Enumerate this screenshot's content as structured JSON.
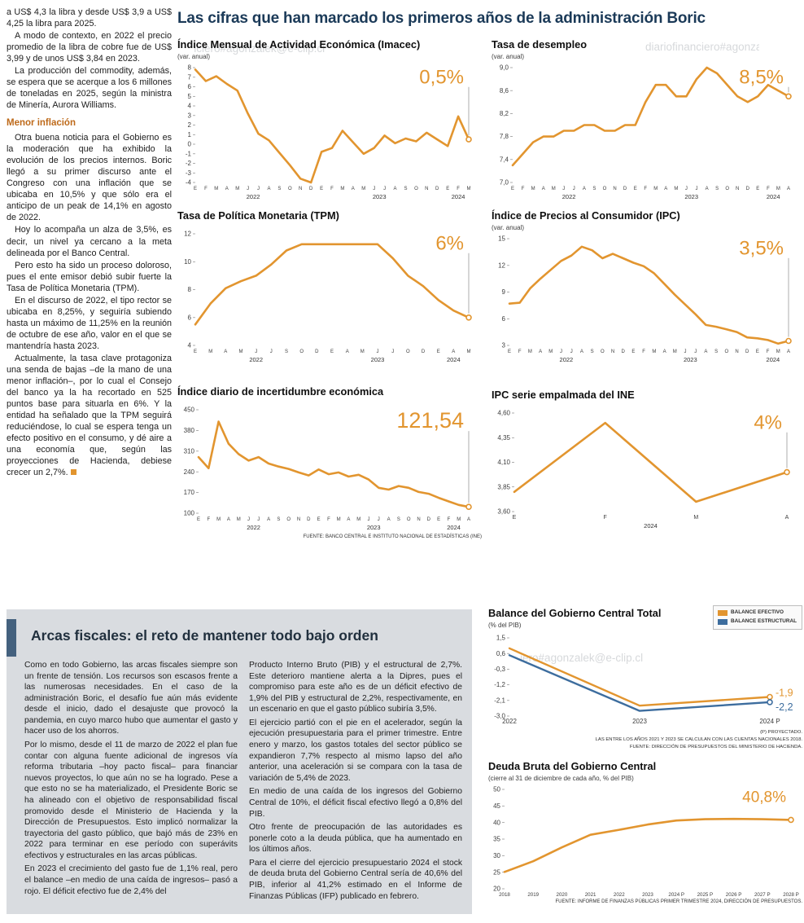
{
  "watermark": "diariofinanciero#agonzalek@e-clip.cl",
  "article": {
    "intro": [
      "a US$ 4,3 la libra y desde US$ 3,9 a US$ 4,25 la libra para 2025.",
      "A modo de contexto, en 2022 el precio promedio de la libra de cobre fue de US$ 3,99 y de unos US$ 3,84 en 2023.",
      "La producción del commodity, además, se espera que se acerque a los 6 millones de toneladas en 2025, según la ministra de Minería, Aurora Williams."
    ],
    "subhead": "Menor inflación",
    "body": [
      "Otra buena noticia para el Gobierno es la moderación que ha exhibido la evolución de los precios internos. Boric llegó a su primer discurso ante el Congreso con una inflación que se ubicaba en 10,5% y que sólo era el anticipo de un peak de 14,1% en agosto de 2022.",
      "Hoy lo acompaña un alza de 3,5%, es decir, un nivel ya cercano a la meta delineada por el Banco Central.",
      "Pero esto ha sido un proceso doloroso, pues el ente emisor debió subir fuerte la Tasa de Política Monetaria (TPM).",
      "En el discurso de 2022, el tipo rector se ubicaba en 8,25%, y seguiría subiendo hasta un máximo de 11,25% en la reunión de octubre de ese año, valor en el que se mantendría hasta 2023.",
      "Actualmente, la tasa clave protagoniza una senda de bajas –de la mano de una menor inflación–, por lo cual el Consejo del banco ya la ha recortado en 525 puntos base para situarla en 6%. Y la entidad ha señalado que la TPM seguirá reduciéndose, lo cual se espera tenga un efecto positivo en el consumo, y dé aire a una economía que, según las proyecciones de Hacienda, debiese crecer un 2,7%."
    ]
  },
  "main": {
    "title": "Las cifras que han marcado los primeros años de la administración Boric"
  },
  "fiscal": {
    "title": "Arcas fiscales: el reto de mantener todo bajo orden",
    "col1": [
      "Como en todo Gobierno, las arcas fiscales siempre son un frente de tensión. Los recursos son escasos frente a las numerosas necesidades. En el caso de la administración Boric, el desafío fue aún más evidente desde el inicio, dado el desajuste que provocó la pandemia, en cuyo marco hubo que aumentar el gasto y hacer uso de los ahorros.",
      "Por lo mismo, desde el 11 de marzo de 2022 el plan fue contar con alguna fuente adicional de ingresos vía reforma tributaria –hoy pacto fiscal– para financiar nuevos proyectos, lo que aún no se ha logrado. Pese a que esto no se ha materializado, el Presidente Boric se ha alineado con el objetivo de responsabilidad fiscal promovido desde el Ministerio de Hacienda y la Dirección de Presupuestos. Esto implicó normalizar la trayectoria del gasto público, que bajó más de 23% en 2022 para terminar en ese período con superávits efectivos y estructurales en las arcas públicas.",
      "En 2023 el crecimiento del gasto fue de 1,1% real, pero el balance –en medio de una caída de ingresos– pasó a rojo. El déficit efectivo fue de 2,4% del"
    ],
    "col2": [
      "Producto Interno Bruto (PIB) y el estructural de 2,7%. Este deterioro mantiene alerta a la Dipres, pues el compromiso para este año es de un déficit efectivo de 1,9% del PIB y estructural de 2,2%, respectivamente, en un escenario en que el gasto público subiría 3,5%.",
      "El ejercicio partió con el pie en el acelerador, según la ejecución presupuestaria para el primer trimestre. Entre enero y marzo, los gastos totales del sector público se expandieron 7,7% respecto al mismo lapso del año anterior, una aceleración si se compara con la tasa de variación de 5,4% de 2023.",
      "En medio de una caída de los ingresos del Gobierno Central de 10%, el déficit fiscal efectivo llegó a 0,8% del PIB.",
      "Otro frente de preocupación de las autoridades es ponerle coto a la deuda pública, que ha aumentado en los últimos años.",
      "Para el cierre del ejercicio presupuestario 2024 el stock de deuda bruta del Gobierno Central sería de 40,6% del PIB, inferior al 41,2% estimado en el Informe de Finanzas Públicas (IFP) publicado en febrero."
    ]
  },
  "chart_data": [
    {
      "id": "imacec",
      "type": "line",
      "title": "Índice Mensual de Actividad Económica (Imacec)",
      "subtitle": "(var. anual)",
      "color": "#E2952F",
      "callout": "0,5%",
      "callout_size": 24,
      "y_ticks": [
        "8",
        "7",
        "6",
        "5",
        "4",
        "3",
        "2",
        "1",
        "0",
        "-1",
        "-2",
        "-3",
        "-4"
      ],
      "x_labels": [
        "E",
        "F",
        "M",
        "A",
        "M",
        "J",
        "J",
        "A",
        "S",
        "O",
        "N",
        "D",
        "E",
        "F",
        "M",
        "A",
        "M",
        "J",
        "J",
        "A",
        "S",
        "O",
        "N",
        "D",
        "E",
        "F",
        "M"
      ],
      "years": [
        {
          "label": "2022",
          "from": 0,
          "to": 11
        },
        {
          "label": "2023",
          "from": 12,
          "to": 23
        },
        {
          "label": "2024",
          "from": 24,
          "to": 26
        }
      ],
      "values": [
        7.8,
        6.6,
        7.1,
        6.3,
        5.6,
        3.2,
        1.1,
        0.4,
        -0.9,
        -2.2,
        -3.6,
        -4.0,
        -0.8,
        -0.4,
        1.4,
        0.2,
        -1.0,
        -0.4,
        0.9,
        0.1,
        0.6,
        0.3,
        1.2,
        0.5,
        -0.2,
        2.9,
        0.5
      ],
      "pad": {
        "l": 22,
        "r": 16,
        "t": 6,
        "b": 14
      }
    },
    {
      "id": "desempleo",
      "type": "line",
      "title": "Tasa de desempleo",
      "subtitle": "(var. anual)",
      "color": "#E2952F",
      "callout": "8,5%",
      "callout_size": 24,
      "y_ticks": [
        "9,0",
        "8,6",
        "8,2",
        "7,8",
        "7,4",
        "7,0"
      ],
      "x_labels": [
        "E",
        "F",
        "M",
        "A",
        "M",
        "J",
        "J",
        "A",
        "S",
        "O",
        "N",
        "D",
        "E",
        "F",
        "M",
        "A",
        "M",
        "J",
        "J",
        "A",
        "S",
        "O",
        "N",
        "D",
        "E",
        "F",
        "M",
        "A"
      ],
      "years": [
        {
          "label": "2022",
          "from": 0,
          "to": 11
        },
        {
          "label": "2023",
          "from": 12,
          "to": 23
        },
        {
          "label": "2024",
          "from": 24,
          "to": 27
        }
      ],
      "values": [
        7.3,
        7.5,
        7.7,
        7.8,
        7.8,
        7.9,
        7.9,
        8.0,
        8.0,
        7.9,
        7.9,
        8.0,
        8.0,
        8.4,
        8.7,
        8.7,
        8.5,
        8.5,
        8.8,
        9.0,
        8.9,
        8.7,
        8.5,
        8.4,
        8.5,
        8.7,
        8.6,
        8.5
      ],
      "pad": {
        "l": 26,
        "r": 16,
        "t": 6,
        "b": 14
      }
    },
    {
      "id": "tpm",
      "type": "line",
      "title": "Tasa de Política Monetaria (TPM)",
      "color": "#E2952F",
      "callout": "6%",
      "callout_size": 24,
      "y_ticks": [
        "12",
        "10",
        "8",
        "6",
        "4"
      ],
      "x_labels": [
        "E",
        "M",
        "A",
        "M",
        "J",
        "J",
        "S",
        "O",
        "D",
        "E",
        "A",
        "M",
        "J",
        "J",
        "O",
        "D",
        "E",
        "A",
        "M"
      ],
      "years": [
        {
          "label": "2022",
          "from": 0,
          "to": 8
        },
        {
          "label": "2023",
          "from": 9,
          "to": 15
        },
        {
          "label": "2024",
          "from": 16,
          "to": 18
        }
      ],
      "values": [
        5.5,
        7.0,
        8.1,
        8.6,
        9.0,
        9.8,
        10.8,
        11.25,
        11.25,
        11.25,
        11.25,
        11.25,
        11.25,
        10.25,
        9.0,
        8.25,
        7.25,
        6.5,
        6.0
      ],
      "pad": {
        "l": 22,
        "r": 16,
        "t": 6,
        "b": 14
      }
    },
    {
      "id": "ipc",
      "type": "line",
      "title": "Índice de Precios al Consumidor (IPC)",
      "subtitle": "(var. anual)",
      "color": "#E2952F",
      "callout": "3,5%",
      "callout_size": 24,
      "y_ticks": [
        "15",
        "12",
        "9",
        "6",
        "3"
      ],
      "x_labels": [
        "E",
        "F",
        "M",
        "A",
        "M",
        "J",
        "J",
        "A",
        "S",
        "O",
        "N",
        "D",
        "E",
        "F",
        "M",
        "A",
        "M",
        "J",
        "J",
        "A",
        "S",
        "O",
        "N",
        "D",
        "E",
        "F",
        "M",
        "A"
      ],
      "years": [
        {
          "label": "2022",
          "from": 0,
          "to": 11
        },
        {
          "label": "2023",
          "from": 12,
          "to": 23
        },
        {
          "label": "2024",
          "from": 24,
          "to": 27
        }
      ],
      "values": [
        7.7,
        7.8,
        9.4,
        10.5,
        11.5,
        12.5,
        13.1,
        14.1,
        13.7,
        12.8,
        13.3,
        12.8,
        12.3,
        11.9,
        11.1,
        9.9,
        8.7,
        7.6,
        6.5,
        5.3,
        5.1,
        4.8,
        4.5,
        3.9,
        3.8,
        3.6,
        3.2,
        3.5
      ],
      "pad": {
        "l": 22,
        "r": 16,
        "t": 6,
        "b": 14
      }
    },
    {
      "id": "incert",
      "type": "line",
      "title": "Índice diario de incertidumbre económica",
      "color": "#E2952F",
      "callout": "121,54",
      "callout_size": 27,
      "y_ticks": [
        "450",
        "380",
        "310",
        "240",
        "170",
        "100"
      ],
      "x_labels": [
        "E",
        "F",
        "M",
        "A",
        "M",
        "J",
        "J",
        "A",
        "S",
        "O",
        "N",
        "D",
        "E",
        "F",
        "M",
        "A",
        "M",
        "J",
        "J",
        "A",
        "S",
        "O",
        "N",
        "D",
        "E",
        "F",
        "M",
        "A"
      ],
      "years": [
        {
          "label": "2022",
          "from": 0,
          "to": 11
        },
        {
          "label": "2023",
          "from": 12,
          "to": 23
        },
        {
          "label": "2024",
          "from": 24,
          "to": 27
        }
      ],
      "values": [
        290,
        252,
        410,
        335,
        300,
        278,
        290,
        268,
        258,
        250,
        238,
        228,
        248,
        232,
        238,
        224,
        230,
        214,
        186,
        180,
        192,
        186,
        172,
        166,
        152,
        140,
        128,
        121.54
      ],
      "source": "FUENTE: BANCO CENTRAL E INSTITUTO NACIONAL DE ESTADÍSTICAS (INE)",
      "pad": {
        "l": 26,
        "r": 16,
        "t": 6,
        "b": 14
      }
    },
    {
      "id": "empalmada",
      "type": "line",
      "title": "IPC serie empalmada del INE",
      "color": "#E2952F",
      "callout": "4%",
      "callout_size": 24,
      "y_ticks": [
        "4,60",
        "4,35",
        "4,10",
        "3,85",
        "3,60"
      ],
      "x_labels": [
        "E",
        "F",
        "M",
        "A"
      ],
      "years": [
        {
          "label": "2024",
          "from": 0,
          "to": 3
        }
      ],
      "values": [
        3.8,
        4.5,
        3.7,
        4.0
      ],
      "xtick_size": 7,
      "pad": {
        "l": 28,
        "r": 18,
        "t": 6,
        "b": 14
      }
    },
    {
      "id": "balance",
      "type": "line",
      "title": "Balance del Gobierno Central Total",
      "subtitle": "(% del PIB)",
      "y_ticks": [
        "1,5",
        "0,6",
        "-0,3",
        "-1,2",
        "-2,1",
        "-3,0"
      ],
      "x_labels": [
        "2022",
        "2023",
        "2024 P"
      ],
      "series": [
        {
          "name": "BALANCE EFECTIVO",
          "color": "#E2952F",
          "values": [
            0.9,
            -2.4,
            -1.9
          ],
          "end_label": "-1,9",
          "end_dy": -1
        },
        {
          "name": "BALANCE ESTRUCTURAL",
          "color": "#3D6D9E",
          "values": [
            0.5,
            -2.7,
            -2.2
          ],
          "end_label": "-2,2",
          "end_dy": 10
        }
      ],
      "xtick_size": 8,
      "stroke": 2.4,
      "notes": [
        "(P) PROYECTADO.",
        "LAS ENTRE LOS AÑOS 2021 Y 2023 SE CALCULAN  CON LAS CUENTAS NACIONALES 2018.",
        "FUENTE: DIRECCIÓN DE PRESUPUESTOS DEL MINISTERIO DE HACIENDA."
      ],
      "pad": {
        "l": 26,
        "r": 40,
        "t": 8,
        "b": 14
      }
    },
    {
      "id": "deuda",
      "type": "line",
      "title": "Deuda Bruta del Gobierno Central",
      "subtitle": "(cierre al 31 de diciembre de cada año, % del PIB)",
      "color": "#E2952F",
      "callout": "40,8%",
      "callout_size": 19,
      "callout_line": false,
      "y_ticks": [
        "50",
        "45",
        "40",
        "35",
        "30",
        "25",
        "20"
      ],
      "x_labels": [
        "2018",
        "2019",
        "2020",
        "2021",
        "2022",
        "2023",
        "2024 P",
        "2025 P",
        "2026 P",
        "2027 P",
        "2028 P"
      ],
      "values": [
        25.1,
        28.3,
        32.5,
        36.3,
        37.8,
        39.4,
        40.6,
        41.0,
        41.1,
        41.0,
        40.8
      ],
      "xtick_size": 6.2,
      "source": "FUENTE: INFORME DE FINANZAS PÚBLICAS PRIMER TRIMESTRE 2024, DIRECCIÓN DE PRESUPUESTOS.",
      "pad": {
        "l": 20,
        "r": 14,
        "t": 6,
        "b": 12
      }
    }
  ]
}
